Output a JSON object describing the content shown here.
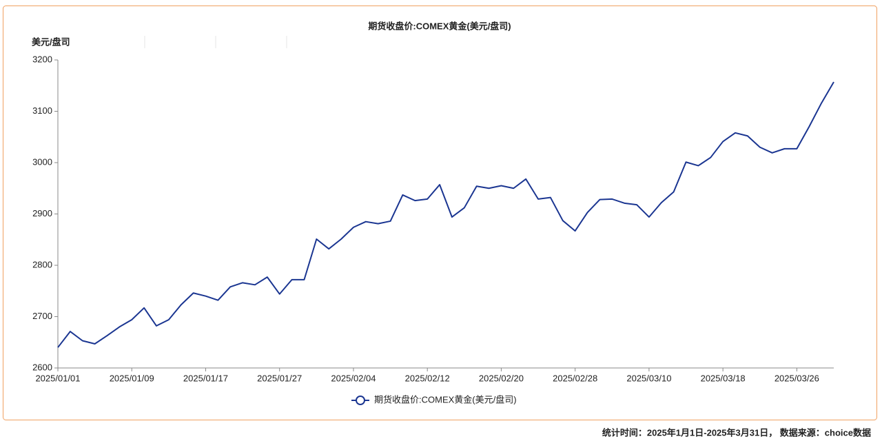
{
  "chart_data": {
    "type": "line",
    "title": "期货收盘价:COMEX黄金(美元/盘司)",
    "y_label": "美元/盘司",
    "footer": "统计时间：2025年1月1日-2025年3月31日， 数据来源：choice数据",
    "categories": [
      "2025/01/01",
      null,
      null,
      null,
      null,
      null,
      "2025/01/09",
      null,
      null,
      null,
      null,
      null,
      "2025/01/17",
      null,
      null,
      null,
      null,
      null,
      "2025/01/27",
      null,
      null,
      null,
      null,
      null,
      "2025/02/04",
      null,
      null,
      null,
      null,
      null,
      "2025/02/12",
      null,
      null,
      null,
      null,
      null,
      "2025/02/20",
      null,
      null,
      null,
      null,
      null,
      "2025/02/28",
      null,
      null,
      null,
      null,
      null,
      "2025/03/10",
      null,
      null,
      null,
      null,
      null,
      "2025/03/18",
      null,
      null,
      null,
      null,
      null,
      "2025/03/26",
      null,
      null,
      null
    ],
    "series": [
      {
        "name": "期货收盘价:COMEX黄金(美元/盘司)",
        "color": "#1a3591",
        "values": [
          2640,
          2671,
          2653,
          2647,
          2663,
          2680,
          2694,
          2717,
          2682,
          2694,
          2723,
          2746,
          2740,
          2732,
          2758,
          2766,
          2762,
          2777,
          2744,
          2772,
          2772,
          2851,
          2832,
          2851,
          2874,
          2885,
          2881,
          2886,
          2937,
          2926,
          2929,
          2957,
          2894,
          2912,
          2954,
          2950,
          2955,
          2950,
          2968,
          2929,
          2932,
          2887,
          2867,
          2903,
          2928,
          2929,
          2921,
          2918,
          2894,
          2922,
          2943,
          3001,
          2994,
          3010,
          3041,
          3058,
          3052,
          3030,
          3019,
          3027,
          3027,
          3070,
          3116,
          3157
        ]
      }
    ],
    "ylim": [
      2600,
      3200
    ],
    "yticks": [
      2600,
      2700,
      2800,
      2900,
      3000,
      3100,
      3200
    ],
    "grid": false
  }
}
